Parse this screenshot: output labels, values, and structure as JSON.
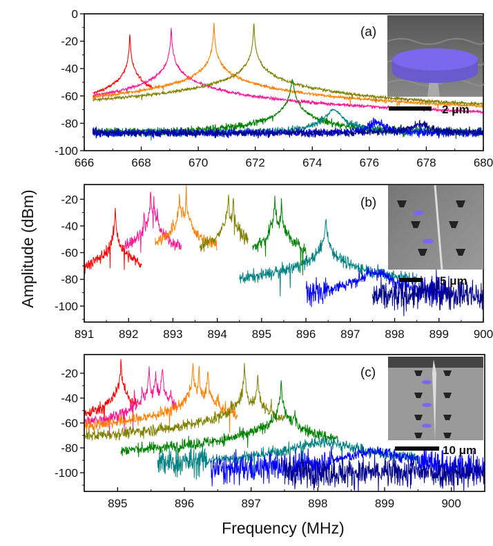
{
  "ylabel": "Amplitude (dBm)",
  "xlabel": "Frequency (MHz)",
  "chart_data": [
    {
      "type": "line",
      "panel_label": "(a)",
      "scale_bar": "2 μm",
      "xlim": [
        666,
        680
      ],
      "ylim": [
        -100,
        0
      ],
      "xticks": [
        666,
        668,
        670,
        672,
        674,
        676,
        678,
        680
      ],
      "yticks": [
        0,
        -20,
        -40,
        -60,
        -80,
        -100
      ],
      "noise_db": 1.5,
      "series": [
        {
          "color": "#ff0000",
          "range": [
            666.3,
            668.4
          ],
          "floor": -85,
          "peaks": [
            [
              667.6,
              -14,
              0.008
            ],
            [
              667.6,
              -66,
              0.35
            ],
            [
              666.4,
              -78,
              0.01
            ]
          ]
        },
        {
          "color": "#ff1493",
          "range": [
            666.3,
            680
          ],
          "floor": -87,
          "peaks": [
            [
              669.05,
              -9,
              0.008
            ],
            [
              669.05,
              -70,
              0.45
            ],
            [
              668.3,
              -80,
              0.01
            ]
          ]
        },
        {
          "color": "#ff8000",
          "range": [
            666.3,
            680
          ],
          "floor": -87,
          "peaks": [
            [
              670.55,
              -6,
              0.008
            ],
            [
              670.55,
              -66,
              0.6
            ],
            [
              669.75,
              -78,
              0.01
            ]
          ]
        },
        {
          "color": "#808000",
          "range": [
            666.3,
            680
          ],
          "floor": -87,
          "peaks": [
            [
              671.95,
              -6,
              0.008
            ],
            [
              671.95,
              -64,
              0.7
            ],
            [
              672.9,
              -80,
              0.01
            ]
          ]
        },
        {
          "color": "#008000",
          "range": [
            666.3,
            680
          ],
          "floor": -87,
          "peaks": [
            [
              673.3,
              -48,
              0.03
            ],
            [
              673.3,
              -78,
              0.3
            ]
          ]
        },
        {
          "color": "#008080",
          "range": [
            666.3,
            680
          ],
          "floor": -87,
          "peaks": [
            [
              674.75,
              -70,
              0.18
            ]
          ]
        },
        {
          "color": "#0000ff",
          "range": [
            666.3,
            680
          ],
          "floor": -87,
          "peaks": [
            [
              676.25,
              -80,
              0.22
            ]
          ]
        },
        {
          "color": "#00008b",
          "range": [
            666.3,
            680
          ],
          "floor": -87,
          "peaks": [
            [
              677.8,
              -82,
              0.3
            ]
          ]
        }
      ]
    },
    {
      "type": "line",
      "panel_label": "(b)",
      "scale_bar": "5 μm",
      "xlim": [
        891,
        900
      ],
      "ylim": [
        -112,
        -9
      ],
      "xticks": [
        891,
        892,
        893,
        894,
        895,
        896,
        897,
        898,
        899,
        900
      ],
      "yticks": [
        -20,
        -40,
        -60,
        -80,
        -100
      ],
      "noise_db": 6,
      "series": [
        {
          "color": "#ff0000",
          "range": [
            891,
            892.3
          ],
          "floor": -100,
          "peaks": [
            [
              891.7,
              -27,
              0.005
            ],
            [
              891.7,
              -80,
              0.08
            ]
          ]
        },
        {
          "color": "#ff1493",
          "range": [
            891.9,
            893.2
          ],
          "floor": -98,
          "peaks": [
            [
              892.5,
              -14,
              0.005
            ],
            [
              892.35,
              -30,
              0.005
            ],
            [
              892.65,
              -25,
              0.005
            ],
            [
              892.45,
              -40,
              0.005
            ],
            [
              892.57,
              -20,
              0.005
            ],
            [
              892.2,
              -55,
              0.005
            ],
            [
              892.8,
              -50,
              0.005
            ],
            [
              892.5,
              -70,
              0.3
            ]
          ]
        },
        {
          "color": "#ff8000",
          "range": [
            892.6,
            894.0
          ],
          "floor": -98,
          "peaks": [
            [
              893.15,
              -14,
              0.005
            ],
            [
              893.3,
              -14,
              0.005
            ],
            [
              893.0,
              -40,
              0.005
            ],
            [
              893.4,
              -30,
              0.005
            ],
            [
              893.22,
              -22,
              0.005
            ],
            [
              893.2,
              -70,
              0.3
            ]
          ]
        },
        {
          "color": "#808000",
          "range": [
            893.6,
            894.7
          ],
          "floor": -98,
          "peaks": [
            [
              894.25,
              -14,
              0.005
            ],
            [
              894.36,
              -18,
              0.005
            ],
            [
              894.1,
              -45,
              0.005
            ],
            [
              894.5,
              -40,
              0.005
            ],
            [
              894.3,
              -72,
              0.3
            ]
          ]
        },
        {
          "color": "#008080",
          "range": [
            894.5,
            898.5
          ],
          "floor": -97,
          "peaks": [
            [
              896.45,
              -35,
              0.01
            ],
            [
              896.45,
              -70,
              0.35
            ]
          ]
        },
        {
          "color": "#008000",
          "range": [
            894.8,
            896.0
          ],
          "floor": -98,
          "peaks": [
            [
              895.3,
              -17,
              0.005
            ],
            [
              895.45,
              -20,
              0.005
            ],
            [
              895.2,
              -40,
              0.005
            ],
            [
              895.6,
              -45,
              0.005
            ],
            [
              895.4,
              -72,
              0.3
            ]
          ]
        },
        {
          "color": "#0000ff",
          "range": [
            896.0,
            899.2
          ],
          "floor": -97,
          "peaks": [
            [
              897.55,
              -75,
              0.25
            ]
          ]
        },
        {
          "color": "#00008b",
          "range": [
            897.5,
            900
          ],
          "floor": -94,
          "peaks": [
            [
              899.0,
              -90,
              0.4
            ]
          ]
        }
      ]
    },
    {
      "type": "line",
      "panel_label": "(c)",
      "scale_bar": "10 μm",
      "xlim": [
        894.5,
        900.5
      ],
      "ylim": [
        -115,
        -5
      ],
      "xticks": [
        895,
        896,
        897,
        898,
        899,
        900
      ],
      "yticks": [
        -20,
        -40,
        -60,
        -80,
        -100
      ],
      "noise_db": 6,
      "series": [
        {
          "color": "#ff0000",
          "range": [
            894.5,
            895.3
          ],
          "floor": -88,
          "peaks": [
            [
              895.05,
              -10,
              0.004
            ],
            [
              894.95,
              -60,
              0.004
            ],
            [
              894.7,
              -75,
              0.004
            ],
            [
              895.0,
              -65,
              0.15
            ]
          ]
        },
        {
          "color": "#ff1493",
          "range": [
            894.5,
            895.9
          ],
          "floor": -88,
          "peaks": [
            [
              895.47,
              -15,
              0.004
            ],
            [
              895.57,
              -19,
              0.004
            ],
            [
              895.67,
              -15,
              0.004
            ],
            [
              895.37,
              -33,
              0.004
            ],
            [
              895.25,
              -36,
              0.004
            ],
            [
              895.8,
              -32,
              0.004
            ],
            [
              895.5,
              -70,
              0.2
            ]
          ]
        },
        {
          "color": "#ff8000",
          "range": [
            894.5,
            896.8
          ],
          "floor": -100,
          "peaks": [
            [
              896.13,
              -13,
              0.004
            ],
            [
              896.22,
              -18,
              0.004
            ],
            [
              896.35,
              -17,
              0.004
            ],
            [
              896.05,
              -40,
              0.004
            ],
            [
              895.95,
              -45,
              0.004
            ],
            [
              896.5,
              -40,
              0.004
            ],
            [
              896.2,
              -55,
              0.35
            ]
          ]
        },
        {
          "color": "#808000",
          "range": [
            894.5,
            897.5
          ],
          "floor": -100,
          "peaks": [
            [
              896.9,
              -16,
              0.004
            ],
            [
              897.1,
              -21,
              0.004
            ],
            [
              897.3,
              -44,
              0.004
            ],
            [
              896.7,
              -45,
              0.004
            ],
            [
              897.0,
              -60,
              0.15
            ]
          ]
        },
        {
          "color": "#008000",
          "range": [
            895.05,
            898.3
          ],
          "floor": -100,
          "peaks": [
            [
              897.45,
              -27,
              0.004
            ],
            [
              897.65,
              -55,
              0.01
            ],
            [
              897.5,
              -70,
              0.2
            ]
          ]
        },
        {
          "color": "#008080",
          "range": [
            895.6,
            899.5
          ],
          "floor": -100,
          "peaks": [
            [
              898.1,
              -75,
              0.3
            ]
          ]
        },
        {
          "color": "#0000ff",
          "range": [
            896.4,
            900.5
          ],
          "floor": -100,
          "peaks": [
            [
              898.85,
              -83,
              0.3
            ]
          ]
        },
        {
          "color": "#00008b",
          "range": [
            897.5,
            900.5
          ],
          "floor": -100,
          "peaks": []
        }
      ]
    }
  ]
}
